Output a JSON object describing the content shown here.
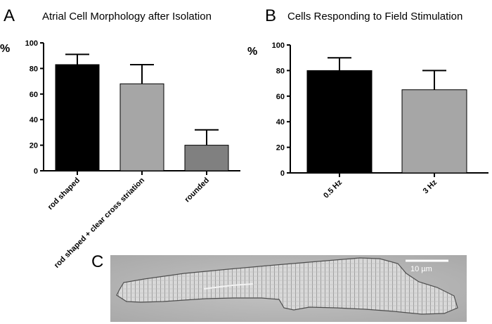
{
  "panels": {
    "a": "A",
    "b": "B",
    "c": "C"
  },
  "chart_data": [
    {
      "type": "bar",
      "title": "Atrial Cell Morphology after Isolation",
      "ylabel": "%",
      "ylim": [
        0,
        100
      ],
      "yticks": [
        "0",
        "20",
        "40",
        "60",
        "80",
        "100"
      ],
      "categories": [
        "rod shaped",
        "rod shaped + clear cross striation",
        "rounded"
      ],
      "values": [
        83,
        68,
        20
      ],
      "errors": [
        8,
        15,
        12
      ],
      "colors": [
        "#000000",
        "#a6a6a6",
        "#808080"
      ],
      "grid": false
    },
    {
      "type": "bar",
      "title": "Cells Responding to Field Stimulation",
      "ylabel": "%",
      "ylim": [
        0,
        100
      ],
      "yticks": [
        "0",
        "20",
        "40",
        "60",
        "80",
        "100"
      ],
      "categories": [
        "0.5 Hz",
        "3 Hz"
      ],
      "values": [
        80,
        65
      ],
      "errors": [
        10,
        15
      ],
      "colors": [
        "#000000",
        "#a6a6a6"
      ],
      "grid": false
    }
  ],
  "micrograph": {
    "scale_bar_label": "10 µm"
  }
}
